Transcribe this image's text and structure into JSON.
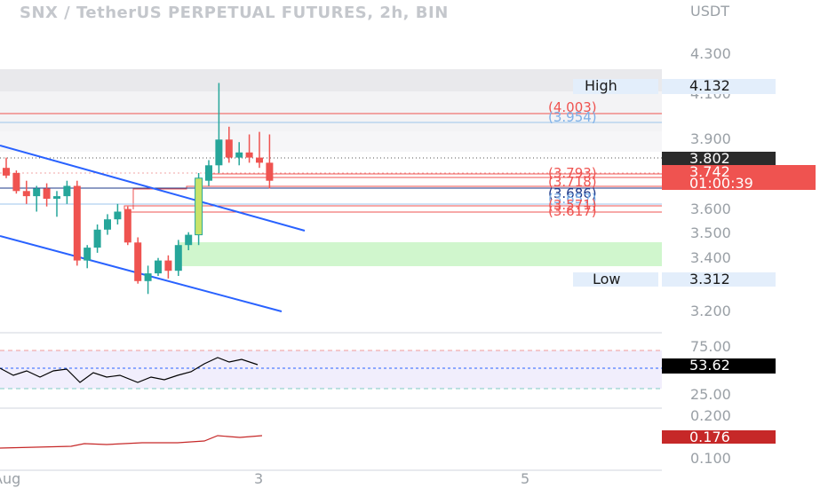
{
  "header": {
    "title": "SNX / TetherUS PERPETUAL FUTURES, 2h, BIN",
    "currency": "USDT"
  },
  "colors": {
    "up": "#26a69a",
    "down": "#ef5350",
    "channel": "#2962ff",
    "highlight": "#c7e36a",
    "rsi": "#000000",
    "indicator2": "#c62828"
  },
  "price_axis": {
    "ticks": [
      "4.300",
      "3.900",
      "3.600",
      "3.500",
      "3.400",
      "3.200"
    ],
    "partial_tick": "4.100"
  },
  "high_label": {
    "label": "High",
    "value": "4.132"
  },
  "low_label": {
    "label": "Low",
    "value": "3.312"
  },
  "current_tags": {
    "last_close": "3.802",
    "price": "3.742",
    "countdown": "01:00:39"
  },
  "levels": [
    {
      "text": "(4.003)",
      "color": "#ef5350"
    },
    {
      "text": "(3.954)",
      "color": "#7cb0e8"
    },
    {
      "text": "(3.793)",
      "color": "#ef5350"
    },
    {
      "text": "(3.718)",
      "color": "#ef5350"
    },
    {
      "text": "(3.686)",
      "color": "#1e3a8a"
    },
    {
      "text": "(3.657)",
      "color": "#7cb0e8"
    },
    {
      "text": "(3.571)",
      "color": "#ef5350"
    },
    {
      "text": "(3.617)",
      "color": "#ef5350"
    }
  ],
  "rsi": {
    "value": "53.62",
    "ticks": [
      "75.00",
      "25.00"
    ]
  },
  "indicator2": {
    "value": "0.176",
    "ticks": [
      "0.100"
    ],
    "partial_tick": "0.200"
  },
  "time_axis": {
    "labels": [
      "Aug",
      "3",
      "5"
    ]
  },
  "chart_data": {
    "type": "candlestick",
    "title": "SNX / TetherUS PERPETUAL FUTURES, 2h, BIN",
    "candles": [
      {
        "o": 3.8,
        "h": 3.84,
        "l": 3.76,
        "c": 3.77
      },
      {
        "o": 3.78,
        "h": 3.79,
        "l": 3.7,
        "c": 3.71
      },
      {
        "o": 3.71,
        "h": 3.75,
        "l": 3.66,
        "c": 3.69
      },
      {
        "o": 3.69,
        "h": 3.73,
        "l": 3.63,
        "c": 3.72
      },
      {
        "o": 3.72,
        "h": 3.74,
        "l": 3.65,
        "c": 3.68
      },
      {
        "o": 3.68,
        "h": 3.71,
        "l": 3.61,
        "c": 3.69
      },
      {
        "o": 3.69,
        "h": 3.75,
        "l": 3.66,
        "c": 3.73
      },
      {
        "o": 3.73,
        "h": 3.75,
        "l": 3.42,
        "c": 3.44
      },
      {
        "o": 3.44,
        "h": 3.5,
        "l": 3.41,
        "c": 3.49
      },
      {
        "o": 3.49,
        "h": 3.58,
        "l": 3.47,
        "c": 3.56
      },
      {
        "o": 3.56,
        "h": 3.62,
        "l": 3.54,
        "c": 3.6
      },
      {
        "o": 3.6,
        "h": 3.66,
        "l": 3.58,
        "c": 3.63
      },
      {
        "o": 3.64,
        "h": 3.65,
        "l": 3.5,
        "c": 3.51
      },
      {
        "o": 3.51,
        "h": 3.53,
        "l": 3.35,
        "c": 3.36
      },
      {
        "o": 3.36,
        "h": 3.42,
        "l": 3.31,
        "c": 3.39
      },
      {
        "o": 3.39,
        "h": 3.45,
        "l": 3.38,
        "c": 3.44
      },
      {
        "o": 3.44,
        "h": 3.46,
        "l": 3.37,
        "c": 3.4
      },
      {
        "o": 3.4,
        "h": 3.52,
        "l": 3.38,
        "c": 3.5
      },
      {
        "o": 3.5,
        "h": 3.55,
        "l": 3.48,
        "c": 3.54
      },
      {
        "o": 3.54,
        "h": 3.78,
        "l": 3.5,
        "c": 3.76
      },
      {
        "o": 3.75,
        "h": 3.83,
        "l": 3.73,
        "c": 3.81
      },
      {
        "o": 3.81,
        "h": 4.13,
        "l": 3.78,
        "c": 3.91
      },
      {
        "o": 3.91,
        "h": 3.96,
        "l": 3.82,
        "c": 3.84
      },
      {
        "o": 3.84,
        "h": 3.9,
        "l": 3.81,
        "c": 3.86
      },
      {
        "o": 3.86,
        "h": 3.93,
        "l": 3.82,
        "c": 3.84
      },
      {
        "o": 3.84,
        "h": 3.94,
        "l": 3.8,
        "c": 3.82
      },
      {
        "o": 3.82,
        "h": 3.93,
        "l": 3.72,
        "c": 3.75
      }
    ],
    "ylim": [
      3.15,
      4.35
    ],
    "x_labels": [
      "Aug",
      "3",
      "5"
    ]
  }
}
